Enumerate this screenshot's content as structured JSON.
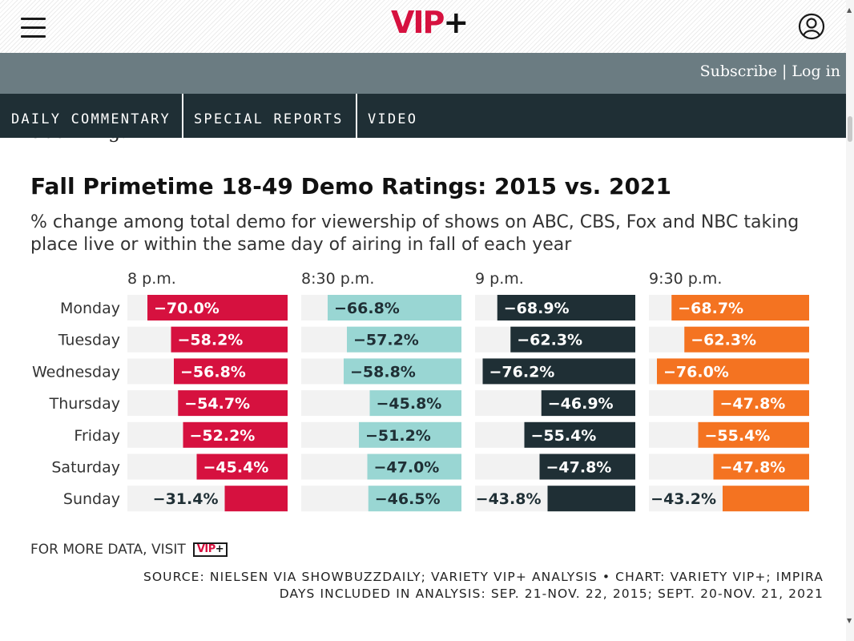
{
  "header": {
    "logo_text": "VIP",
    "logo_plus": "+",
    "subscribe_label": "Subscribe",
    "divider": " | ",
    "login_label": "Log in"
  },
  "nav": {
    "items": [
      "DAILY COMMENTARY",
      "SPECIAL REPORTS",
      "VIDEO"
    ]
  },
  "article": {
    "cut_text": "declining."
  },
  "icons": {
    "menu": "hamburger-icon",
    "account": "user-icon"
  },
  "colors": {
    "brand_red": "#d6113f",
    "subbar": "#6b7c82",
    "navbar": "#1f2f35",
    "track": "#f2f2f2"
  },
  "chart_data": {
    "type": "bar",
    "title": "Fall Primetime 18-49 Demo Ratings: 2015 vs. 2021",
    "subtitle": "% change among total demo for viewership of shows on ABC, CBS, Fox and NBC taking place live or within the same day of airing in fall of each year",
    "categories": [
      "Monday",
      "Tuesday",
      "Wednesday",
      "Thursday",
      "Friday",
      "Saturday",
      "Sunday"
    ],
    "xlim": [
      -80,
      0
    ],
    "series": [
      {
        "name": "8 p.m.",
        "color": "#d6113f",
        "labels_inside": true,
        "values": [
          -70.0,
          -58.2,
          -56.8,
          -54.7,
          -52.2,
          -45.4,
          -31.4
        ],
        "labels": [
          "−70.0%",
          "−58.2%",
          "−56.8%",
          "−54.7%",
          "−52.2%",
          "−45.4%",
          "−31.4%"
        ]
      },
      {
        "name": "8:30 p.m.",
        "color": "#99d6d3",
        "label_color": "#1f2f35",
        "values": [
          -66.8,
          -57.2,
          -58.8,
          -45.8,
          -51.2,
          -47.0,
          -46.5
        ],
        "labels": [
          "−66.8%",
          "−57.2%",
          "−58.8%",
          "−45.8%",
          "−51.2%",
          "−47.0%",
          "−46.5%"
        ]
      },
      {
        "name": "9 p.m.",
        "color": "#1f2f35",
        "values": [
          -68.9,
          -62.3,
          -76.2,
          -46.9,
          -55.4,
          -47.8,
          -43.8
        ],
        "labels": [
          "−68.9%",
          "−62.3%",
          "−76.2%",
          "−46.9%",
          "−55.4%",
          "−47.8%",
          "−43.8%"
        ]
      },
      {
        "name": "9:30 p.m.",
        "color": "#f47321",
        "values": [
          -68.7,
          -62.3,
          -76.0,
          -47.8,
          -55.4,
          -47.8,
          -43.2
        ],
        "labels": [
          "−68.7%",
          "−62.3%",
          "−76.0%",
          "−47.8%",
          "−55.4%",
          "−47.8%",
          "−43.2%"
        ]
      }
    ],
    "grid": false,
    "legend": "none"
  },
  "footer": {
    "visit_text": "FOR MORE DATA, VISIT",
    "visit_badge": "VIP",
    "visit_badge_plus": "+",
    "source_line1": "SOURCE: NIELSEN VIA SHOWBUZZDAILY; VARIETY VIP+ ANALYSIS • CHART: VARIETY VIP+; IMPIRA",
    "source_line2": "DAYS INCLUDED IN ANALYSIS: SEP. 21-NOV. 22, 2015; SEPT. 20-NOV. 21, 2021"
  }
}
